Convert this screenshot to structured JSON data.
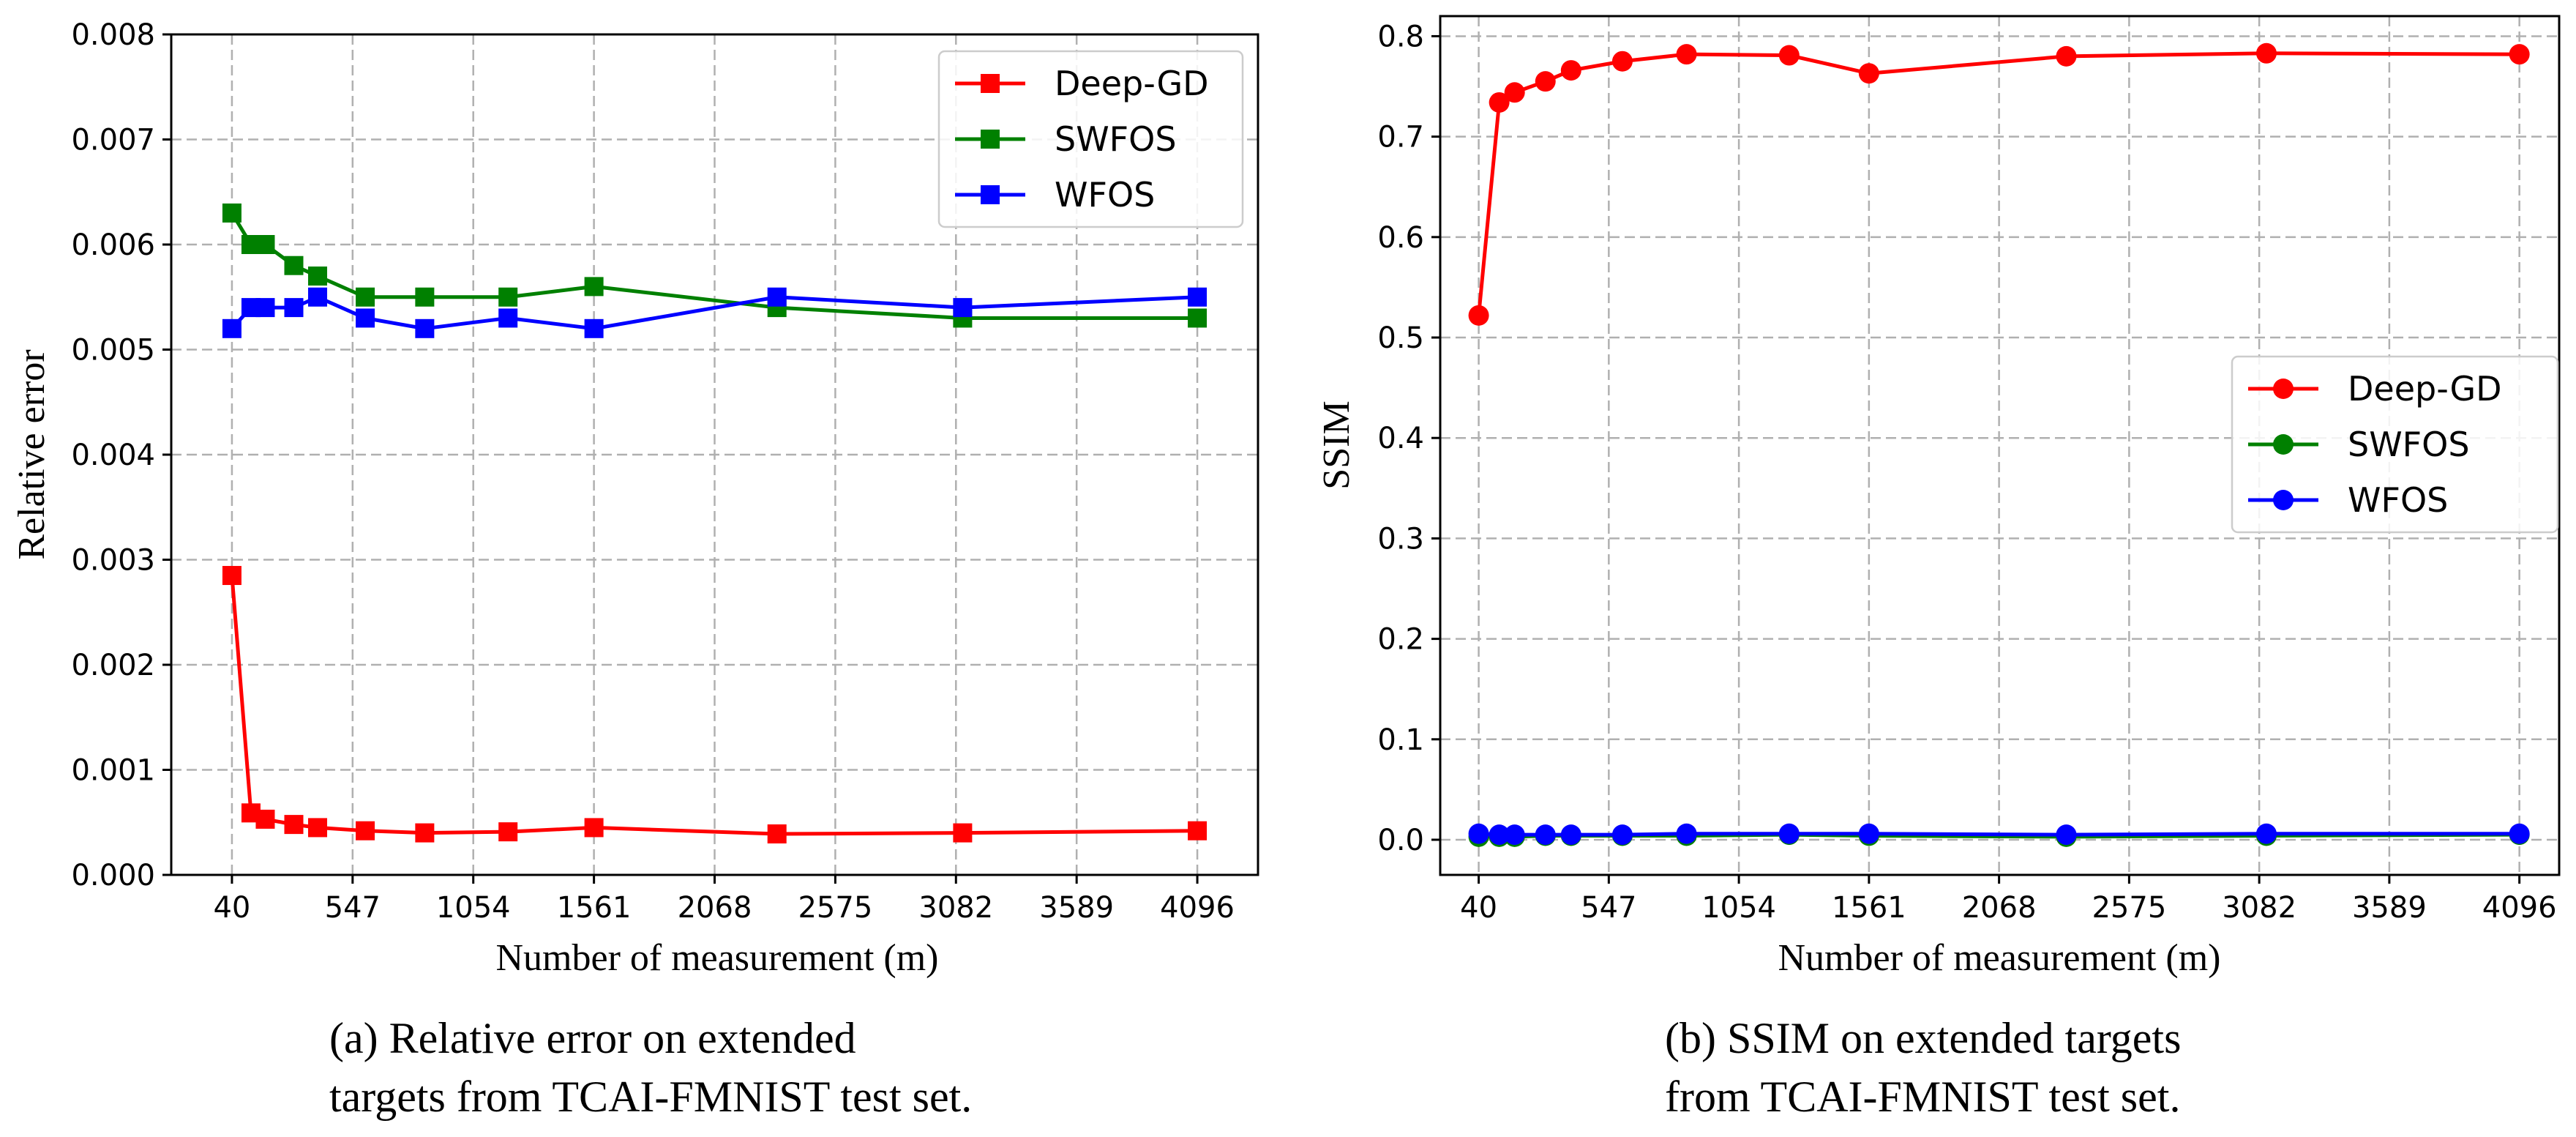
{
  "chart_data": [
    {
      "type": "line",
      "title": "",
      "xlabel": "Number of measurement (m)",
      "ylabel": "Relative error",
      "caption_lines": [
        "(a) Relative error  on  extended",
        "targets from TCAI-FMNIST test set."
      ],
      "xticks": [
        40,
        547,
        1054,
        1561,
        2068,
        2575,
        3082,
        3589,
        4096
      ],
      "xtick_labels": [
        "40",
        "547",
        "1054",
        "1561",
        "2068",
        "2575",
        "3082",
        "3589",
        "4096"
      ],
      "yticks": [
        0.0,
        0.001,
        0.002,
        0.003,
        0.004,
        0.005,
        0.006,
        0.007,
        0.008
      ],
      "ytick_labels": [
        "0.000",
        "0.001",
        "0.002",
        "0.003",
        "0.004",
        "0.005",
        "0.006",
        "0.007",
        "0.008"
      ],
      "xlim": [
        -215,
        4351
      ],
      "ylim": [
        0.0,
        0.008
      ],
      "grid": true,
      "legend_position": "top-right",
      "marker": "square",
      "x": [
        40,
        120,
        180,
        300,
        400,
        600,
        850,
        1200,
        1561,
        2330,
        3110,
        4096
      ],
      "series": [
        {
          "name": "Deep-GD",
          "color": "#ff0000",
          "values": [
            0.00285,
            0.00059,
            0.00053,
            0.00048,
            0.00045,
            0.00042,
            0.0004,
            0.00041,
            0.00045,
            0.00039,
            0.0004,
            0.00042
          ]
        },
        {
          "name": "SWFOS",
          "color": "#008000",
          "values": [
            0.0063,
            0.006,
            0.006,
            0.0058,
            0.0057,
            0.0055,
            0.0055,
            0.0055,
            0.0056,
            0.0054,
            0.0053,
            0.0053
          ]
        },
        {
          "name": "WFOS",
          "color": "#0000ff",
          "values": [
            0.0052,
            0.0054,
            0.0054,
            0.0054,
            0.0055,
            0.0053,
            0.0052,
            0.0053,
            0.0052,
            0.0055,
            0.0054,
            0.0055
          ]
        }
      ]
    },
    {
      "type": "line",
      "title": "",
      "xlabel": "Number of measurement (m)",
      "ylabel": "SSIM",
      "caption_lines": [
        "(b) SSIM on extended targets",
        "from TCAI-FMNIST test set."
      ],
      "xticks": [
        40,
        547,
        1054,
        1561,
        2068,
        2575,
        3082,
        3589,
        4096
      ],
      "xtick_labels": [
        "40",
        "547",
        "1054",
        "1561",
        "2068",
        "2575",
        "3082",
        "3589",
        "4096"
      ],
      "yticks": [
        0.0,
        0.1,
        0.2,
        0.3,
        0.4,
        0.5,
        0.6,
        0.7,
        0.8
      ],
      "ytick_labels": [
        "0.0",
        "0.1",
        "0.2",
        "0.3",
        "0.4",
        "0.5",
        "0.6",
        "0.7",
        "0.8"
      ],
      "xlim": [
        -110,
        4251
      ],
      "ylim": [
        -0.035,
        0.82
      ],
      "grid": true,
      "legend_position": "center-right",
      "marker": "circle",
      "x": [
        40,
        120,
        180,
        300,
        400,
        600,
        850,
        1250,
        1561,
        2330,
        3110,
        4096
      ],
      "series": [
        {
          "name": "Deep-GD",
          "color": "#ff0000",
          "values": [
            0.522,
            0.734,
            0.744,
            0.755,
            0.766,
            0.775,
            0.782,
            0.781,
            0.763,
            0.78,
            0.783,
            0.782
          ]
        },
        {
          "name": "SWFOS",
          "color": "#008000",
          "values": [
            0.003,
            0.003,
            0.003,
            0.004,
            0.004,
            0.004,
            0.004,
            0.005,
            0.004,
            0.003,
            0.004,
            0.005
          ]
        },
        {
          "name": "WFOS",
          "color": "#0000ff",
          "values": [
            0.006,
            0.005,
            0.005,
            0.005,
            0.005,
            0.005,
            0.006,
            0.006,
            0.006,
            0.005,
            0.006,
            0.006
          ]
        }
      ]
    }
  ]
}
